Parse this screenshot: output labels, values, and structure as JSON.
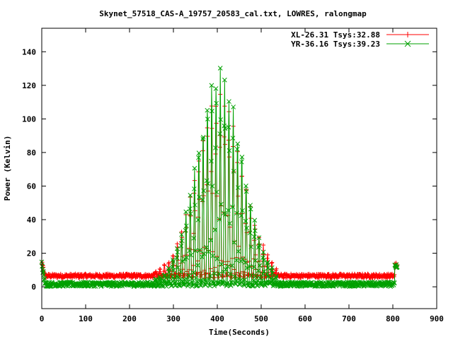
{
  "chart_data": {
    "type": "line",
    "title": "Skynet_57518_CAS-A_19757_20583_cal.txt, LOWRES, ralongmap",
    "xlabel": "Time(Seconds)",
    "ylabel": "Power (Kelvin)",
    "xlim": [
      0,
      900
    ],
    "ylim": [
      -13,
      154
    ],
    "x_ticks": [
      0,
      100,
      200,
      300,
      400,
      500,
      600,
      700,
      800,
      900
    ],
    "y_ticks": [
      0,
      20,
      40,
      60,
      80,
      100,
      120,
      140
    ],
    "grid": false,
    "legend_position": "top-right",
    "series": [
      {
        "name": "XL-26.31 Tsys:32.88",
        "color": "#ff0000",
        "marker": "plus",
        "baseline": 6.5,
        "peak": 110,
        "envelope_center": 405,
        "envelope_sigma": 52,
        "x_range": [
          0,
          810
        ],
        "start_level": 14,
        "end_level": 13,
        "scan_period": 9.8
      },
      {
        "name": "YR-36.16 Tsys:39.23",
        "color": "#00a000",
        "marker": "x",
        "baseline": 1.5,
        "peak": 129,
        "envelope_center": 405,
        "envelope_sigma": 52,
        "x_range": [
          0,
          810
        ],
        "start_level": 14,
        "end_level": 12,
        "scan_period": 9.8
      }
    ]
  }
}
